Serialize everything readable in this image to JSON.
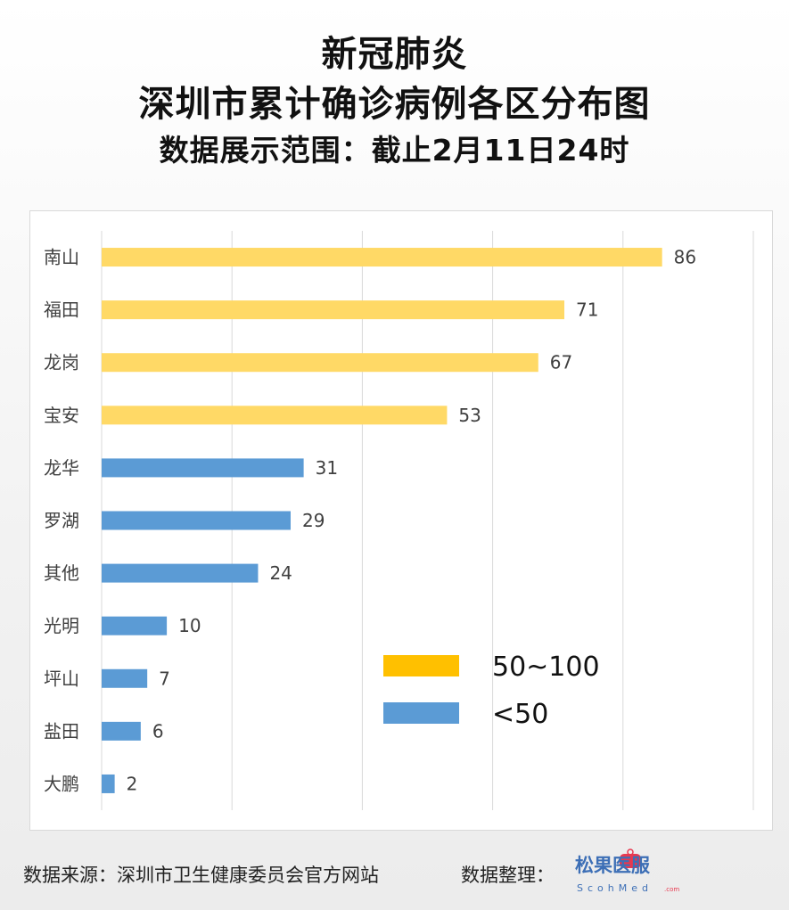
{
  "title": {
    "line1": "新冠肺炎",
    "line2": "深圳市累计确诊病例各区分布图",
    "line3": "数据展示范围：截止2月11日24时"
  },
  "footer": {
    "source": "数据来源：深圳市卫生健康委员会官方网站",
    "compiled": "数据整理：",
    "logo_cn": "松果医服",
    "logo_en": "ScohMed",
    "logo_com": ".com"
  },
  "chart_data": {
    "type": "bar",
    "orientation": "horizontal",
    "categories": [
      "南山",
      "福田",
      "龙岗",
      "宝安",
      "龙华",
      "罗湖",
      "其他",
      "光明",
      "坪山",
      "盐田",
      "大鹏"
    ],
    "values": [
      86,
      71,
      67,
      53,
      31,
      29,
      24,
      10,
      7,
      6,
      2
    ],
    "xlim": [
      0,
      100
    ],
    "grid": true,
    "colors": {
      "high": "#ffd966",
      "low": "#5b9bd5",
      "legend_high": "#ffc000",
      "legend_low": "#5b9bd5"
    },
    "legend": [
      {
        "label": "50~100",
        "color": "#ffc000"
      },
      {
        "label": "<50",
        "color": "#5b9bd5"
      }
    ]
  }
}
